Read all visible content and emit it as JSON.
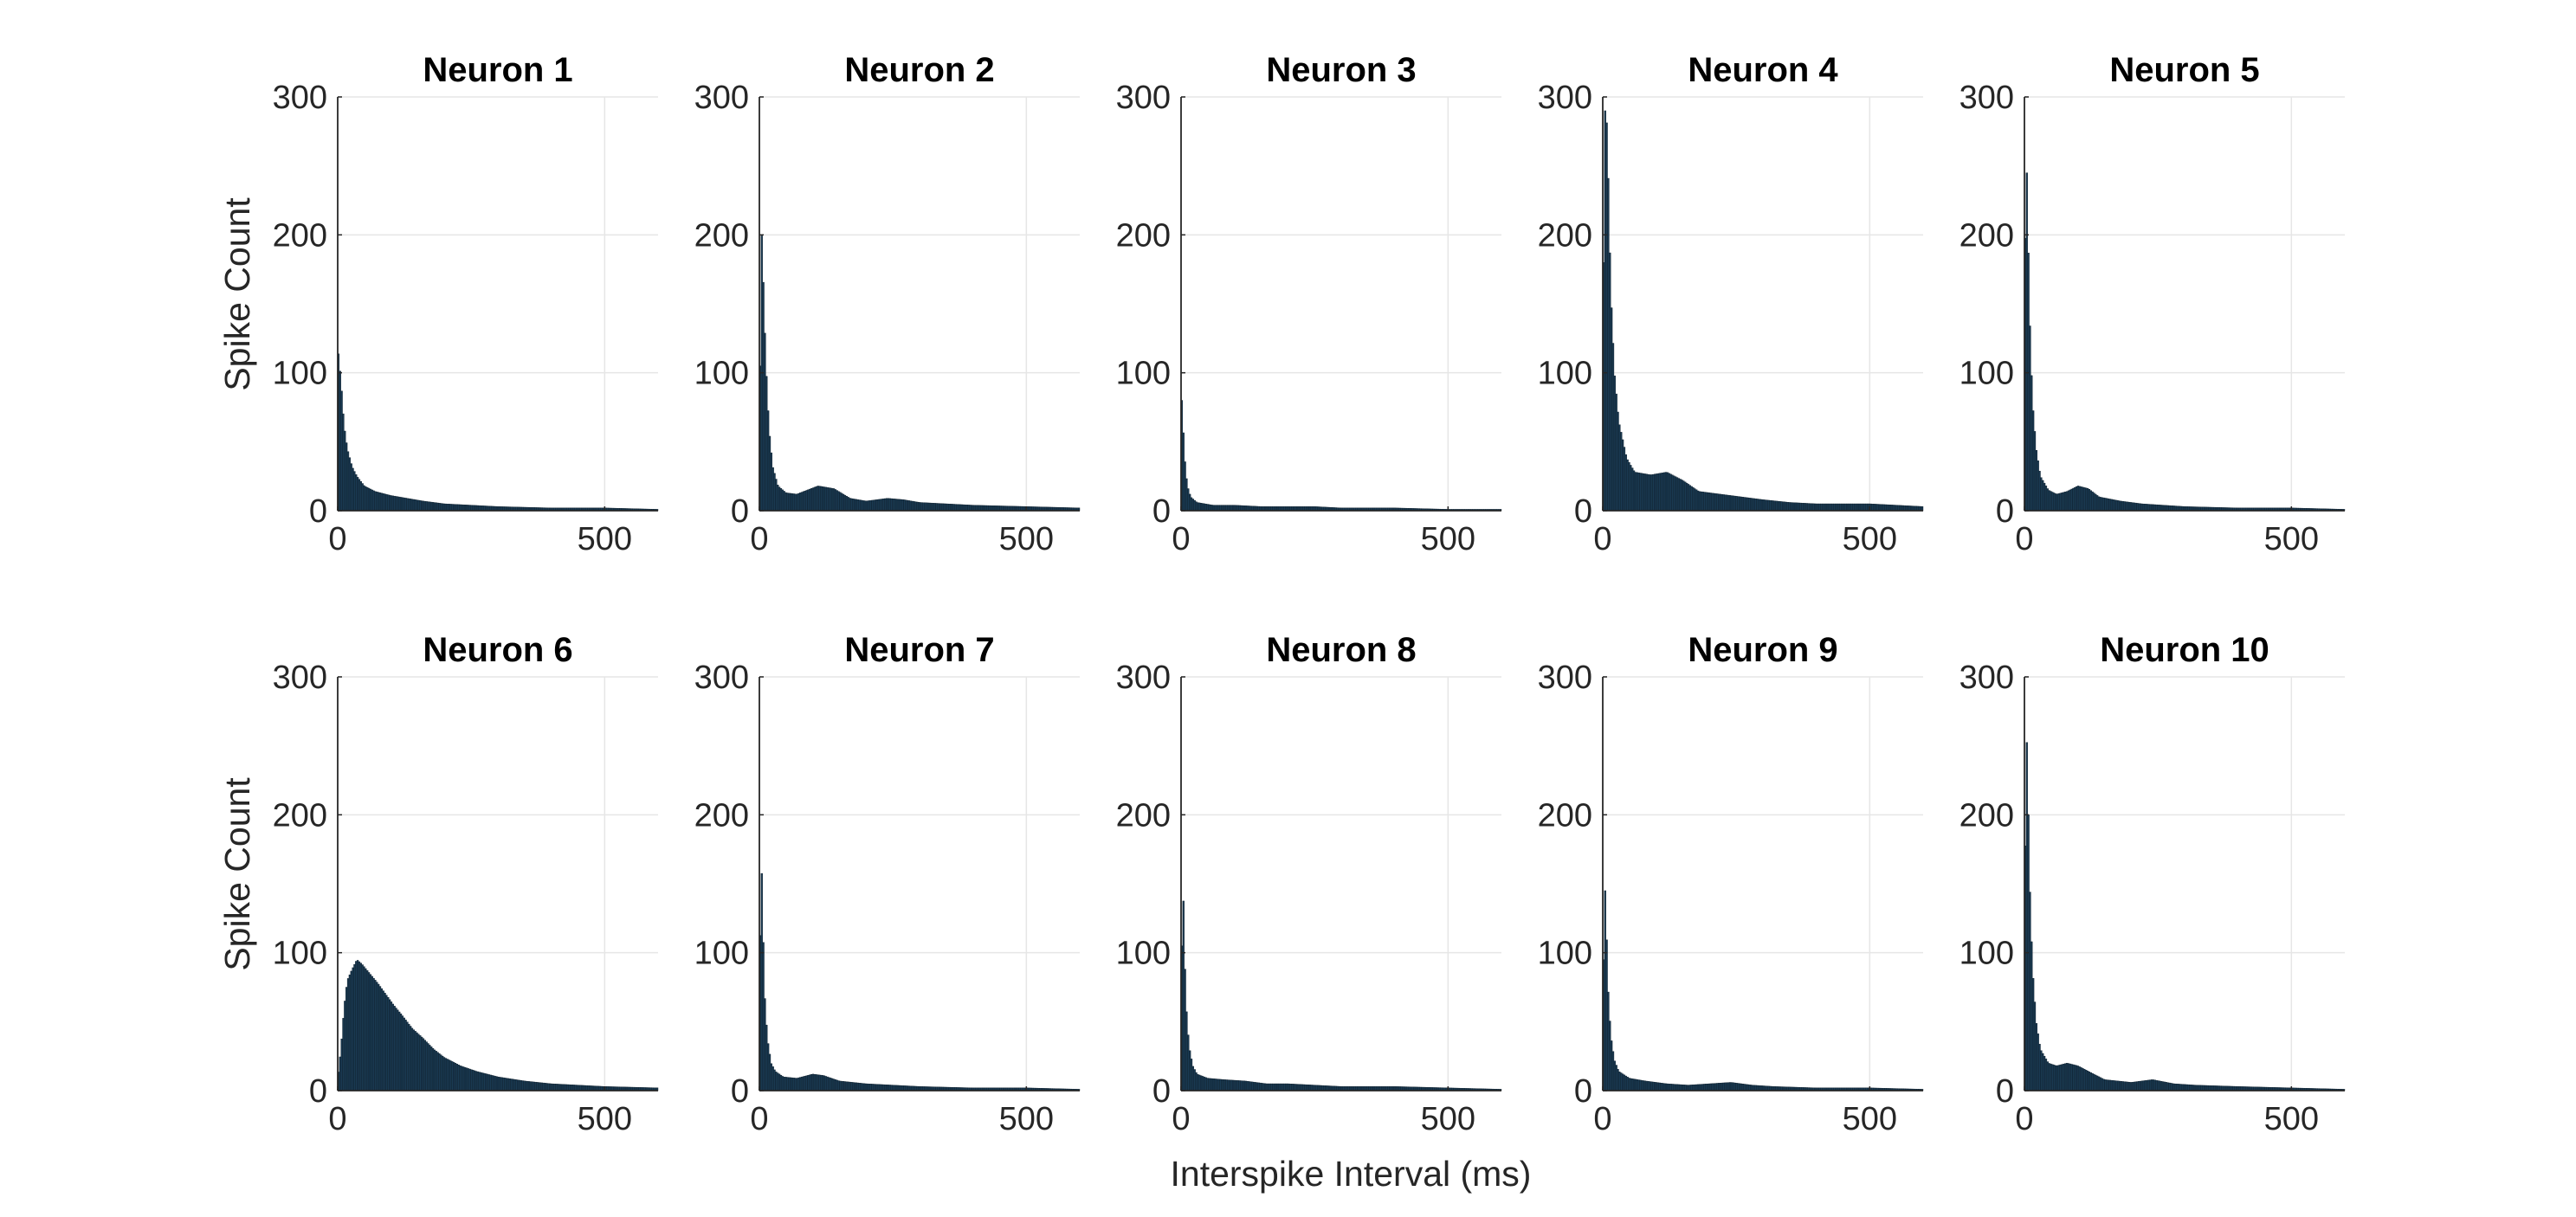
{
  "chart_data": {
    "type": "bar",
    "layout": "small-multiples",
    "grid": true,
    "xlabel": "Interspike Interval (ms)",
    "ylabel": "Spike Count",
    "xlim": [
      0,
      600
    ],
    "ylim": [
      0,
      300
    ],
    "xticks": [
      0,
      500
    ],
    "yticks": [
      0,
      100,
      200,
      300
    ],
    "bin_width_ms": 3,
    "bar_color": "#1a3a52",
    "panels": [
      {
        "title": "Neuron 1",
        "histogram_points": [
          [
            0,
            120
          ],
          [
            6,
            95
          ],
          [
            12,
            62
          ],
          [
            18,
            45
          ],
          [
            27,
            32
          ],
          [
            36,
            25
          ],
          [
            50,
            18
          ],
          [
            70,
            14
          ],
          [
            100,
            11
          ],
          [
            130,
            9
          ],
          [
            160,
            7
          ],
          [
            200,
            5
          ],
          [
            250,
            4
          ],
          [
            300,
            3
          ],
          [
            400,
            2
          ],
          [
            500,
            2
          ],
          [
            600,
            1
          ]
        ]
      },
      {
        "title": "Neuron 2",
        "histogram_points": [
          [
            0,
            45
          ],
          [
            4,
            205
          ],
          [
            8,
            160
          ],
          [
            12,
            110
          ],
          [
            18,
            60
          ],
          [
            25,
            32
          ],
          [
            35,
            18
          ],
          [
            50,
            13
          ],
          [
            70,
            12
          ],
          [
            90,
            15
          ],
          [
            110,
            18
          ],
          [
            140,
            16
          ],
          [
            170,
            9
          ],
          [
            200,
            7
          ],
          [
            240,
            9
          ],
          [
            270,
            8
          ],
          [
            300,
            6
          ],
          [
            400,
            4
          ],
          [
            500,
            3
          ],
          [
            600,
            2
          ]
        ]
      },
      {
        "title": "Neuron 3",
        "histogram_points": [
          [
            0,
            92
          ],
          [
            4,
            60
          ],
          [
            8,
            32
          ],
          [
            12,
            18
          ],
          [
            18,
            10
          ],
          [
            30,
            6
          ],
          [
            60,
            4
          ],
          [
            100,
            4
          ],
          [
            150,
            3
          ],
          [
            200,
            3
          ],
          [
            250,
            3
          ],
          [
            300,
            2
          ],
          [
            400,
            2
          ],
          [
            500,
            1
          ],
          [
            600,
            1
          ]
        ]
      },
      {
        "title": "Neuron 4",
        "histogram_points": [
          [
            0,
            80
          ],
          [
            3,
            280
          ],
          [
            6,
            300
          ],
          [
            10,
            250
          ],
          [
            15,
            160
          ],
          [
            22,
            100
          ],
          [
            30,
            65
          ],
          [
            45,
            38
          ],
          [
            60,
            28
          ],
          [
            90,
            26
          ],
          [
            120,
            28
          ],
          [
            150,
            22
          ],
          [
            180,
            14
          ],
          [
            220,
            12
          ],
          [
            260,
            10
          ],
          [
            300,
            8
          ],
          [
            350,
            6
          ],
          [
            400,
            5
          ],
          [
            450,
            5
          ],
          [
            500,
            5
          ],
          [
            550,
            4
          ],
          [
            600,
            3
          ]
        ]
      },
      {
        "title": "Neuron 5",
        "histogram_points": [
          [
            0,
            120
          ],
          [
            3,
            275
          ],
          [
            6,
            215
          ],
          [
            10,
            140
          ],
          [
            15,
            80
          ],
          [
            22,
            45
          ],
          [
            30,
            25
          ],
          [
            45,
            15
          ],
          [
            60,
            12
          ],
          [
            80,
            14
          ],
          [
            100,
            18
          ],
          [
            120,
            16
          ],
          [
            140,
            10
          ],
          [
            180,
            7
          ],
          [
            220,
            5
          ],
          [
            260,
            4
          ],
          [
            300,
            3
          ],
          [
            400,
            2
          ],
          [
            500,
            2
          ],
          [
            600,
            1
          ]
        ]
      },
      {
        "title": "Neuron 6",
        "histogram_points": [
          [
            0,
            8
          ],
          [
            6,
            30
          ],
          [
            12,
            60
          ],
          [
            18,
            80
          ],
          [
            27,
            88
          ],
          [
            36,
            95
          ],
          [
            45,
            92
          ],
          [
            60,
            85
          ],
          [
            75,
            78
          ],
          [
            90,
            70
          ],
          [
            105,
            62
          ],
          [
            120,
            55
          ],
          [
            140,
            45
          ],
          [
            160,
            38
          ],
          [
            180,
            30
          ],
          [
            200,
            24
          ],
          [
            230,
            18
          ],
          [
            260,
            14
          ],
          [
            300,
            10
          ],
          [
            350,
            7
          ],
          [
            400,
            5
          ],
          [
            450,
            4
          ],
          [
            500,
            3
          ],
          [
            600,
            2
          ]
        ]
      },
      {
        "title": "Neuron 7",
        "histogram_points": [
          [
            0,
            40
          ],
          [
            3,
            185
          ],
          [
            6,
            130
          ],
          [
            10,
            70
          ],
          [
            15,
            38
          ],
          [
            22,
            20
          ],
          [
            30,
            14
          ],
          [
            45,
            10
          ],
          [
            70,
            9
          ],
          [
            100,
            12
          ],
          [
            120,
            11
          ],
          [
            150,
            7
          ],
          [
            200,
            5
          ],
          [
            250,
            4
          ],
          [
            300,
            3
          ],
          [
            400,
            2
          ],
          [
            500,
            2
          ],
          [
            600,
            1
          ]
        ]
      },
      {
        "title": "Neuron 8",
        "histogram_points": [
          [
            0,
            40
          ],
          [
            3,
            170
          ],
          [
            6,
            105
          ],
          [
            10,
            60
          ],
          [
            15,
            32
          ],
          [
            22,
            18
          ],
          [
            30,
            12
          ],
          [
            50,
            9
          ],
          [
            80,
            8
          ],
          [
            120,
            7
          ],
          [
            160,
            5
          ],
          [
            200,
            5
          ],
          [
            250,
            4
          ],
          [
            300,
            3
          ],
          [
            400,
            3
          ],
          [
            500,
            2
          ],
          [
            600,
            1
          ]
        ]
      },
      {
        "title": "Neuron 9",
        "histogram_points": [
          [
            0,
            30
          ],
          [
            3,
            160
          ],
          [
            6,
            130
          ],
          [
            10,
            75
          ],
          [
            15,
            40
          ],
          [
            22,
            22
          ],
          [
            30,
            14
          ],
          [
            50,
            9
          ],
          [
            80,
            7
          ],
          [
            120,
            5
          ],
          [
            160,
            4
          ],
          [
            200,
            5
          ],
          [
            240,
            6
          ],
          [
            280,
            4
          ],
          [
            320,
            3
          ],
          [
            400,
            2
          ],
          [
            500,
            2
          ],
          [
            600,
            1
          ]
        ]
      },
      {
        "title": "Neuron 10",
        "histogram_points": [
          [
            0,
            80
          ],
          [
            3,
            275
          ],
          [
            6,
            230
          ],
          [
            10,
            150
          ],
          [
            15,
            90
          ],
          [
            22,
            50
          ],
          [
            30,
            30
          ],
          [
            45,
            20
          ],
          [
            60,
            18
          ],
          [
            80,
            20
          ],
          [
            100,
            18
          ],
          [
            120,
            14
          ],
          [
            150,
            8
          ],
          [
            200,
            6
          ],
          [
            240,
            8
          ],
          [
            280,
            5
          ],
          [
            320,
            4
          ],
          [
            400,
            3
          ],
          [
            500,
            2
          ],
          [
            600,
            1
          ]
        ]
      }
    ]
  }
}
